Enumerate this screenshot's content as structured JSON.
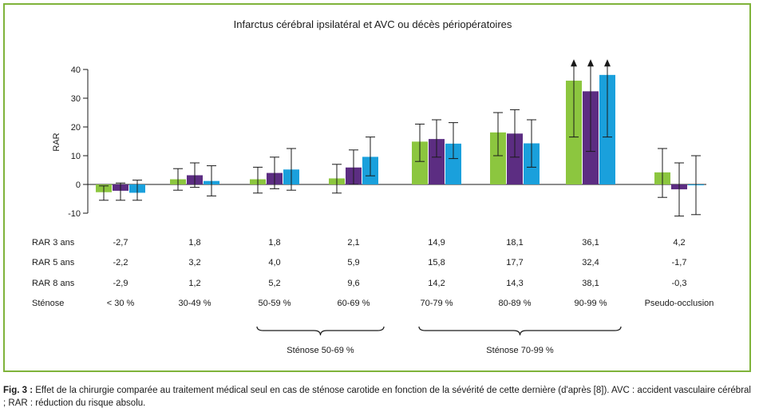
{
  "chart_data": {
    "type": "bar",
    "title": "Infarctus cérébral ipsilatéral et AVC ou décès périopératoires",
    "ylabel": "RAR",
    "ylim": [
      -10,
      40
    ],
    "yticks": [
      40,
      30,
      20,
      10,
      0,
      -10
    ],
    "categories": [
      "< 30 %",
      "30-49 %",
      "50-59 %",
      "60-69 %",
      "70-79 %",
      "80-89 %",
      "90-99 %",
      "Pseudo-occlusion"
    ],
    "series": [
      {
        "name": "RAR 3 ans",
        "color": "#8cc63f",
        "values": [
          -2.7,
          1.8,
          1.8,
          2.1,
          14.9,
          18.1,
          36.1,
          4.2
        ],
        "labels": [
          "-2,7",
          "1,8",
          "1,8",
          "2,1",
          "14,9",
          "18,1",
          "36,1",
          "4,2"
        ],
        "err_low": [
          -5.5,
          -2,
          -3,
          -3,
          8,
          10,
          16.5,
          -4.5
        ],
        "err_high": [
          -0.5,
          5.5,
          6,
          7,
          21,
          25,
          43,
          12.5
        ],
        "arrow": [
          false,
          false,
          false,
          false,
          false,
          false,
          true,
          false
        ]
      },
      {
        "name": "RAR 5 ans",
        "color": "#5c2d82",
        "values": [
          -2.2,
          3.2,
          4.0,
          5.9,
          15.8,
          17.7,
          32.4,
          -1.7
        ],
        "labels": [
          "-2,2",
          "3,2",
          "4,0",
          "5,9",
          "15,8",
          "17,7",
          "32,4",
          "-1,7"
        ],
        "err_low": [
          -5.5,
          -1,
          -1.5,
          0,
          9.5,
          9.5,
          11.5,
          -11
        ],
        "err_high": [
          0.5,
          7.5,
          9.5,
          12,
          22.5,
          26,
          43,
          7.5
        ],
        "arrow": [
          false,
          false,
          false,
          false,
          false,
          false,
          true,
          false
        ]
      },
      {
        "name": "RAR 8 ans",
        "color": "#1aa0dc",
        "values": [
          -2.9,
          1.2,
          5.2,
          9.6,
          14.2,
          14.3,
          38.1,
          -0.3
        ],
        "labels": [
          "-2,9",
          "1,2",
          "5,2",
          "9,6",
          "14,2",
          "14,3",
          "38,1",
          "-0,3"
        ],
        "err_low": [
          -5.5,
          -4,
          -2,
          3,
          9,
          6,
          16.5,
          -10.5
        ],
        "err_high": [
          1.5,
          6.5,
          12.5,
          16.5,
          21.5,
          22.5,
          43,
          10
        ],
        "arrow": [
          false,
          false,
          false,
          false,
          false,
          false,
          true,
          false
        ]
      }
    ],
    "stenose_label": "Sténose",
    "groups": [
      {
        "label": "Sténose 50-69 %",
        "from": 2,
        "to": 3
      },
      {
        "label": "Sténose 70-99 %",
        "from": 4,
        "to": 6
      }
    ]
  },
  "caption": {
    "prefix": "Fig. 3 :",
    "text": "Effet de la chirurgie comparée au traitement médical seul en cas de sténose carotide en fonction de la sévérité de cette dernière (d'après [8]). AVC : accident vasculaire cérébral ; RAR : réduction du risque absolu."
  }
}
